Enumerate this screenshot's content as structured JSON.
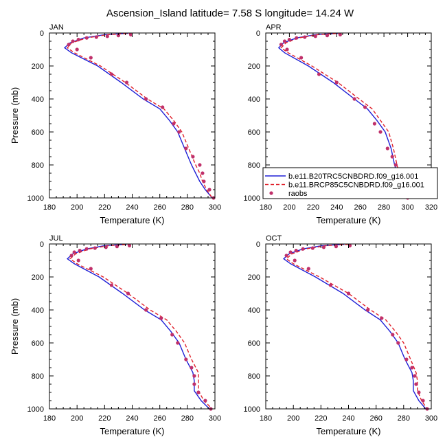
{
  "title": "Ascension_Island  latitude= 7.58 S longitude= 14.24 W",
  "colors": {
    "model1": "#1f1fd6",
    "model2": "#e0202a",
    "obs": "#c0306a"
  },
  "legend": {
    "items": [
      {
        "label": "b.e11.B20TRC5CNBDRD.f09_g16.001",
        "style": "solid",
        "color": "#1f1fd6"
      },
      {
        "label": "b.e11.BRCP85C5CNBDRD.f09_g16.001",
        "style": "dashed",
        "color": "#e0202a"
      },
      {
        "label": "raobs",
        "style": "dot",
        "color": "#c0306a"
      }
    ]
  },
  "chart_data": [
    {
      "type": "line",
      "panel": "JAN",
      "label": "JAN",
      "xlabel": "Temperature (K)",
      "ylabel": "Pressure (mb)",
      "xlim": [
        180,
        300
      ],
      "ylim": [
        1000,
        0
      ],
      "y_inverted": true,
      "xticks": [
        180,
        200,
        220,
        240,
        260,
        280,
        300
      ],
      "yticks": [
        0,
        200,
        400,
        600,
        800,
        1000
      ],
      "series": [
        {
          "name": "b.e11.B20TRC5CNBDRD.f09_g16.001",
          "style": "solid",
          "x": [
            237,
            220,
            205,
            195,
            191,
            196,
            215,
            232,
            248,
            260,
            267,
            273,
            278,
            283,
            286,
            289,
            293,
            298
          ],
          "y": [
            2,
            10,
            30,
            60,
            90,
            120,
            200,
            300,
            400,
            460,
            530,
            600,
            700,
            800,
            850,
            900,
            950,
            1000
          ]
        },
        {
          "name": "b.e11.BRCP85C5CNBDRD.f09_g16.001",
          "style": "dashed",
          "x": [
            240,
            222,
            207,
            196,
            193,
            198,
            217,
            235,
            251,
            263,
            270,
            276,
            281,
            286,
            289,
            291,
            294,
            298
          ],
          "y": [
            2,
            10,
            30,
            60,
            90,
            120,
            200,
            300,
            400,
            460,
            530,
            600,
            700,
            800,
            850,
            900,
            950,
            1000
          ]
        },
        {
          "name": "raobs",
          "style": "dot",
          "x": [
            239,
            230,
            222,
            214,
            207,
            201,
            197,
            194,
            200,
            210,
            225,
            236,
            250,
            262,
            270,
            274,
            279,
            284,
            289,
            291,
            292,
            296,
            299
          ],
          "y": [
            10,
            15,
            20,
            25,
            30,
            40,
            50,
            70,
            100,
            150,
            250,
            300,
            400,
            450,
            550,
            600,
            700,
            750,
            800,
            850,
            900,
            950,
            1000
          ]
        }
      ]
    },
    {
      "type": "line",
      "panel": "APR",
      "label": "APR",
      "xlabel": "Temperature (K)",
      "ylabel": "",
      "xlim": [
        180,
        320
      ],
      "ylim": [
        1000,
        0
      ],
      "y_inverted": true,
      "xticks": [
        180,
        200,
        220,
        240,
        260,
        280,
        300,
        320
      ],
      "yticks": [
        0,
        200,
        400,
        600,
        800,
        1000
      ],
      "series": [
        {
          "name": "b.e11.B20TRC5CNBDRD.f09_g16.001",
          "style": "solid",
          "x": [
            241,
            222,
            206,
            195,
            191,
            196,
            216,
            237,
            255,
            266,
            274,
            281,
            286,
            289,
            291,
            293,
            296,
            298
          ],
          "y": [
            2,
            10,
            30,
            60,
            90,
            120,
            200,
            300,
            400,
            460,
            530,
            600,
            700,
            800,
            850,
            900,
            950,
            1000
          ]
        },
        {
          "name": "b.e11.BRCP85C5CNBDRD.f09_g16.001",
          "style": "dashed",
          "x": [
            244,
            224,
            208,
            197,
            193,
            199,
            219,
            241,
            259,
            270,
            277,
            284,
            288,
            291,
            293,
            295,
            297,
            299
          ],
          "y": [
            2,
            10,
            30,
            60,
            90,
            120,
            200,
            300,
            400,
            460,
            530,
            600,
            700,
            800,
            850,
            900,
            950,
            1000
          ]
        },
        {
          "name": "raobs",
          "style": "dot",
          "x": [
            243,
            232,
            222,
            213,
            206,
            200,
            196,
            193,
            198,
            210,
            225,
            240,
            255,
            264,
            272,
            277,
            283,
            287,
            290,
            292,
            294,
            297,
            300
          ],
          "y": [
            10,
            15,
            20,
            25,
            30,
            40,
            50,
            70,
            100,
            150,
            250,
            300,
            400,
            450,
            550,
            600,
            700,
            750,
            800,
            850,
            900,
            950,
            1000
          ]
        }
      ]
    },
    {
      "type": "line",
      "panel": "JUL",
      "label": "JUL",
      "xlabel": "Temperature (K)",
      "ylabel": "Pressure (mb)",
      "xlim": [
        180,
        300
      ],
      "ylim": [
        1000,
        0
      ],
      "y_inverted": true,
      "xticks": [
        180,
        200,
        220,
        240,
        260,
        280,
        300
      ],
      "yticks": [
        0,
        200,
        400,
        600,
        800,
        1000
      ],
      "series": [
        {
          "name": "b.e11.B20TRC5CNBDRD.f09_g16.001",
          "style": "solid",
          "x": [
            236,
            220,
            207,
            197,
            193,
            198,
            216,
            233,
            249,
            261,
            268,
            274,
            279,
            284,
            285,
            285,
            290,
            296
          ],
          "y": [
            2,
            10,
            30,
            60,
            90,
            120,
            200,
            300,
            400,
            460,
            530,
            600,
            700,
            780,
            830,
            890,
            950,
            1000
          ]
        },
        {
          "name": "b.e11.BRCP85C5CNBDRD.f09_g16.001",
          "style": "dashed",
          "x": [
            239,
            223,
            209,
            199,
            195,
            200,
            219,
            237,
            253,
            265,
            272,
            278,
            283,
            288,
            288,
            288,
            292,
            298
          ],
          "y": [
            2,
            10,
            30,
            60,
            90,
            120,
            200,
            300,
            400,
            460,
            530,
            600,
            700,
            780,
            830,
            890,
            950,
            1000
          ]
        },
        {
          "name": "raobs",
          "style": "dot",
          "x": [
            238,
            229,
            221,
            213,
            207,
            202,
            198,
            196,
            201,
            210,
            225,
            237,
            250,
            261,
            269,
            273,
            279,
            283,
            285,
            285,
            288,
            293,
            297
          ],
          "y": [
            10,
            15,
            20,
            25,
            30,
            40,
            50,
            70,
            100,
            150,
            250,
            300,
            400,
            450,
            550,
            600,
            700,
            750,
            800,
            850,
            900,
            950,
            1000
          ]
        }
      ]
    },
    {
      "type": "line",
      "panel": "OCT",
      "label": "OCT",
      "xlabel": "Temperature (K)",
      "ylabel": "",
      "xlim": [
        180,
        300
      ],
      "ylim": [
        1000,
        0
      ],
      "y_inverted": true,
      "xticks": [
        180,
        200,
        220,
        240,
        260,
        280,
        300
      ],
      "yticks": [
        0,
        200,
        400,
        600,
        800,
        1000
      ],
      "series": [
        {
          "name": "b.e11.B20TRC5CNBDRD.f09_g16.001",
          "style": "solid",
          "x": [
            237,
            221,
            207,
            197,
            193,
            198,
            216,
            236,
            252,
            263,
            270,
            276,
            281,
            286,
            287,
            287,
            291,
            296
          ],
          "y": [
            2,
            10,
            30,
            60,
            90,
            120,
            200,
            300,
            400,
            460,
            530,
            600,
            700,
            780,
            830,
            890,
            950,
            1000
          ]
        },
        {
          "name": "b.e11.BRCP85C5CNBDRD.f09_g16.001",
          "style": "dashed",
          "x": [
            240,
            224,
            209,
            199,
            195,
            200,
            219,
            240,
            256,
            267,
            274,
            280,
            285,
            289,
            290,
            290,
            293,
            297
          ],
          "y": [
            2,
            10,
            30,
            60,
            90,
            120,
            200,
            300,
            400,
            460,
            530,
            600,
            700,
            780,
            830,
            890,
            950,
            1000
          ]
        },
        {
          "name": "raobs",
          "style": "dot",
          "x": [
            241,
            231,
            222,
            214,
            207,
            202,
            198,
            195,
            201,
            211,
            227,
            240,
            254,
            264,
            272,
            276,
            282,
            286,
            288,
            289,
            291,
            294,
            297
          ],
          "y": [
            10,
            15,
            20,
            25,
            30,
            40,
            50,
            70,
            100,
            150,
            250,
            300,
            400,
            450,
            550,
            600,
            700,
            750,
            800,
            850,
            900,
            950,
            1000
          ]
        }
      ]
    }
  ]
}
